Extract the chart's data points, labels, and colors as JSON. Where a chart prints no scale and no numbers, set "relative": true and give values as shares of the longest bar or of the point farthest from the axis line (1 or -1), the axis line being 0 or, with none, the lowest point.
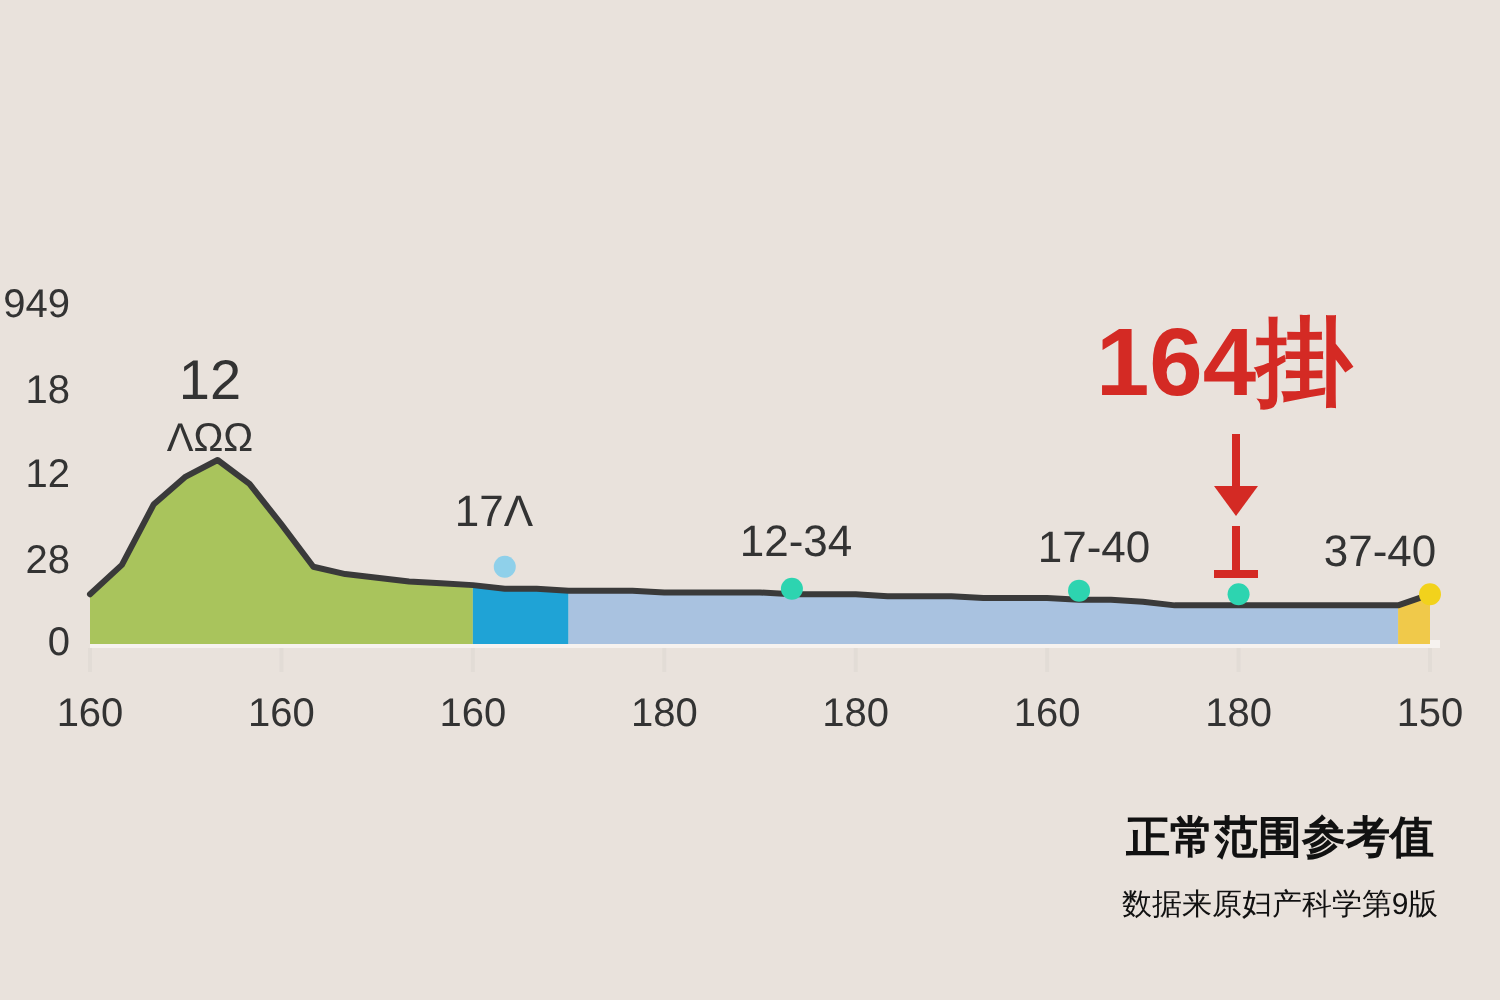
{
  "chart_data": {
    "type": "area",
    "relative": true,
    "categories": [
      "160",
      null,
      null,
      null,
      null,
      null,
      "160",
      null,
      null,
      null,
      null,
      null,
      "160",
      null,
      null,
      null,
      null,
      null,
      "180",
      null,
      null,
      null,
      null,
      null,
      "180",
      null,
      null,
      null,
      null,
      null,
      "160",
      null,
      null,
      null,
      null,
      null,
      "180",
      null,
      null,
      null,
      null,
      null,
      "150"
    ],
    "series": [
      {
        "color": "#a9c45c",
        "values": [
          0.27,
          0.43,
          0.76,
          0.91,
          1,
          0.87,
          0.65,
          0.42,
          0.38,
          0.36,
          0.34,
          0.33,
          0.32,
          null,
          null,
          null,
          null,
          null,
          null,
          null,
          null,
          null,
          null,
          null,
          null,
          null,
          null,
          null,
          null,
          null,
          null,
          null,
          null,
          null,
          null,
          null,
          null,
          null,
          null,
          null,
          null,
          null,
          null
        ]
      },
      {
        "color": "#1fa3d6",
        "values": [
          null,
          null,
          null,
          null,
          null,
          null,
          null,
          null,
          null,
          null,
          null,
          null,
          0.32,
          0.3,
          0.3,
          0.29,
          null,
          null,
          null,
          null,
          null,
          null,
          null,
          null,
          null,
          null,
          null,
          null,
          null,
          null,
          null,
          null,
          null,
          null,
          null,
          null,
          null,
          null,
          null,
          null,
          null,
          null,
          null
        ]
      },
      {
        "color": "#a9c2e0",
        "values": [
          null,
          null,
          null,
          null,
          null,
          null,
          null,
          null,
          null,
          null,
          null,
          null,
          null,
          null,
          null,
          0.29,
          0.29,
          0.29,
          0.28,
          0.28,
          0.28,
          0.28,
          0.27,
          0.27,
          0.27,
          0.26,
          0.26,
          0.26,
          0.25,
          0.25,
          0.25,
          0.24,
          0.24,
          0.23,
          0.21,
          0.21,
          0.21,
          0.21,
          0.21,
          0.21,
          0.21,
          0.21,
          null
        ]
      },
      {
        "color": "#f0c94a",
        "values": [
          null,
          null,
          null,
          null,
          null,
          null,
          null,
          null,
          null,
          null,
          null,
          null,
          null,
          null,
          null,
          null,
          null,
          null,
          null,
          null,
          null,
          null,
          null,
          null,
          null,
          null,
          null,
          null,
          null,
          null,
          null,
          null,
          null,
          null,
          null,
          null,
          null,
          null,
          null,
          null,
          null,
          0.21,
          0.27
        ]
      },
      {
        "type": "line",
        "color": "#3a3a3a",
        "values": [
          0.27,
          0.43,
          0.76,
          0.91,
          1,
          0.87,
          0.65,
          0.42,
          0.38,
          0.36,
          0.34,
          0.33,
          0.32,
          0.3,
          0.3,
          0.29,
          0.29,
          0.29,
          0.28,
          0.28,
          0.28,
          0.28,
          0.27,
          0.27,
          0.27,
          0.26,
          0.26,
          0.26,
          0.25,
          0.25,
          0.25,
          0.24,
          0.24,
          0.23,
          0.21,
          0.21,
          0.21,
          0.21,
          0.21,
          0.21,
          0.21,
          0.21,
          0.27
        ]
      },
      {
        "type": "scatter",
        "marker": "circle",
        "values": [
          null,
          null,
          null,
          null,
          null,
          null,
          null,
          null,
          null,
          null,
          null,
          null,
          null,
          0.42,
          null,
          null,
          null,
          null,
          null,
          null,
          null,
          null,
          0.3,
          null,
          null,
          null,
          null,
          null,
          null,
          null,
          null,
          0.29,
          null,
          null,
          null,
          null,
          0.27,
          null,
          null,
          null,
          null,
          null,
          0.27
        ],
        "colors": [
          null,
          null,
          null,
          null,
          null,
          null,
          null,
          null,
          null,
          null,
          null,
          null,
          null,
          "#8fd0ea",
          null,
          null,
          null,
          null,
          null,
          null,
          null,
          null,
          "#2dd4b0",
          null,
          null,
          null,
          null,
          null,
          null,
          null,
          null,
          "#2dd4b0",
          null,
          null,
          null,
          null,
          "#2dd4b0",
          null,
          null,
          null,
          null,
          null,
          "#f2d21c"
        ]
      }
    ],
    "annotations": [
      "12",
      "ΛΩΩ",
      "17Λ",
      "12-34",
      "17-40",
      "37-40",
      "164掛",
      "正常范围参考值",
      "数据来原妇产科学第9版",
      "0",
      "28",
      "12",
      "18",
      "949"
    ]
  }
}
